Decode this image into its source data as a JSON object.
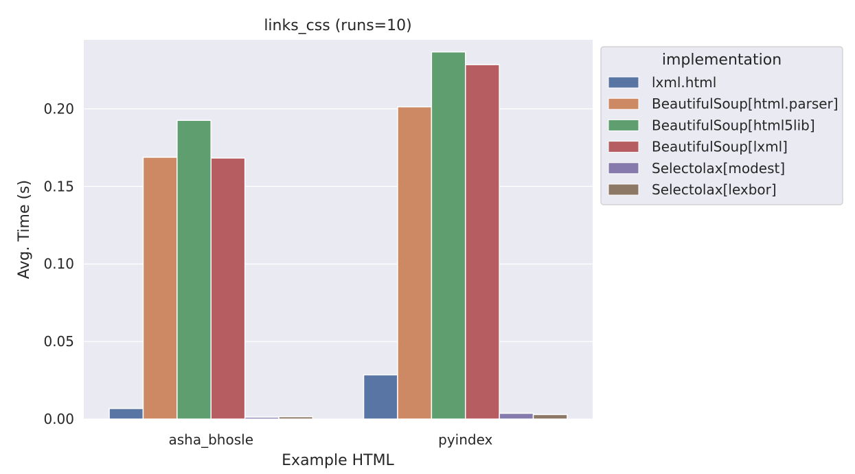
{
  "chart_data": {
    "type": "bar",
    "title": "links_css (runs=10)",
    "xlabel": "Example HTML",
    "ylabel": "Avg. Time (s)",
    "categories": [
      "asha_bhosle",
      "pyindex"
    ],
    "ylim": [
      0,
      0.2445
    ],
    "yticks": [
      0.0,
      0.05,
      0.1,
      0.15,
      0.2
    ],
    "ytick_labels": [
      "0.00",
      "0.05",
      "0.10",
      "0.15",
      "0.20"
    ],
    "grid": true,
    "legend": {
      "title": "implementation",
      "placement": "outside-right-top"
    },
    "series": [
      {
        "name": "lxml.html",
        "color": "#5975a4",
        "values": [
          0.0068,
          0.0285
        ]
      },
      {
        "name": "BeautifulSoup[html.parser]",
        "color": "#cc8963",
        "values": [
          0.1688,
          0.2013
        ]
      },
      {
        "name": "BeautifulSoup[html5lib]",
        "color": "#5f9e6e",
        "values": [
          0.1926,
          0.2367
        ]
      },
      {
        "name": "BeautifulSoup[lxml]",
        "color": "#b55d60",
        "values": [
          0.1683,
          0.2285
        ]
      },
      {
        "name": "Selectolax[modest]",
        "color": "#857aab",
        "values": [
          0.0012,
          0.0037
        ]
      },
      {
        "name": "Selectolax[lexbor]",
        "color": "#8d7866",
        "values": [
          0.0015,
          0.0029
        ]
      }
    ]
  }
}
